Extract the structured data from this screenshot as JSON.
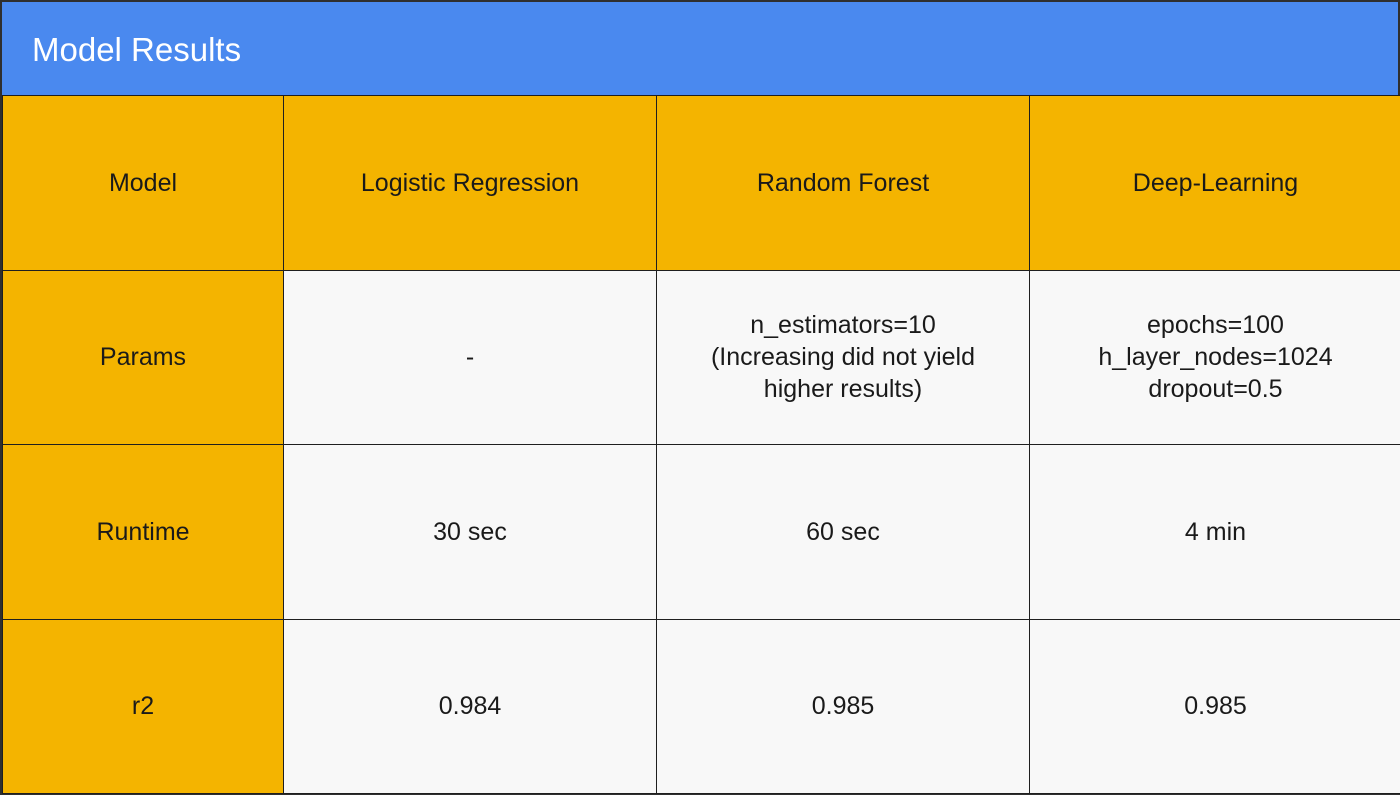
{
  "title": "Model Results",
  "colors": {
    "title_bar": "#4a89ef",
    "header_fill": "#f4b400",
    "cell_fill": "#f8f8f8",
    "border": "#1f1f1f"
  },
  "table": {
    "header": [
      "Model",
      "Logistic Regression",
      "Random Forest",
      "Deep-Learning"
    ],
    "rows": [
      {
        "label": "Params",
        "cells": [
          [
            "-"
          ],
          [
            "n_estimators=10",
            "(Increasing did not yield",
            "higher results)"
          ],
          [
            "epochs=100",
            "h_layer_nodes=1024",
            "dropout=0.5"
          ]
        ]
      },
      {
        "label": "Runtime",
        "cells": [
          [
            "30 sec"
          ],
          [
            "60 sec"
          ],
          [
            "4 min"
          ]
        ]
      },
      {
        "label": "r2",
        "cells": [
          [
            "0.984"
          ],
          [
            "0.985"
          ],
          [
            "0.985"
          ]
        ]
      }
    ]
  }
}
